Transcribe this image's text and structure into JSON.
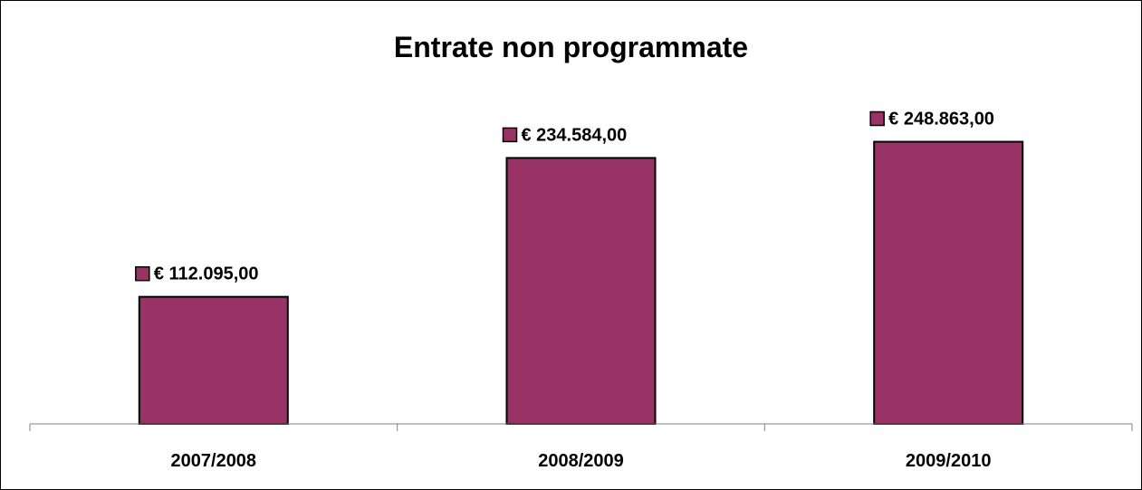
{
  "chart_data": {
    "type": "bar",
    "title": "Entrate non programmate",
    "categories": [
      "2007/2008",
      "2008/2009",
      "2009/2010"
    ],
    "series": [
      {
        "values": [
          112095.0,
          234584.0,
          248863.0
        ]
      }
    ],
    "data_labels": [
      "€ 112.095,00",
      "€ 234.584,00",
      "€ 248.863,00"
    ],
    "xlabel": "",
    "ylabel": "",
    "ylim": [
      0,
      290000
    ],
    "grid": false,
    "legend": "none",
    "y_axis_visible": false,
    "colors": {
      "bar_fill": "#993366",
      "bar_stroke": "#000000",
      "axis": "#808080"
    }
  }
}
